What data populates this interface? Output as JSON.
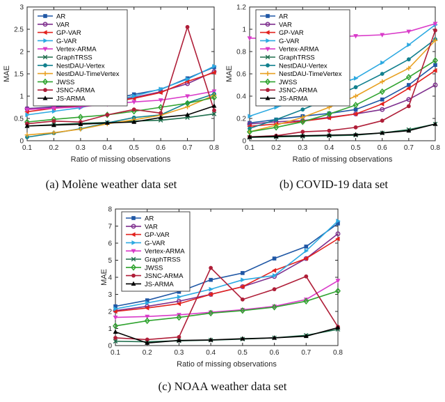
{
  "figure": {
    "captions": {
      "a": "(a) Molène weather data set",
      "b": "(b) COVID-19 data set",
      "c": "(c) NOAA weather data set"
    }
  },
  "colors": {
    "axis": "#262626",
    "legend_border": "#333333",
    "ar_blue": "#1F57A5",
    "var_purple": "#7E2F8E",
    "gpvar_red": "#E2201C",
    "gvar_lightblue": "#2CA9E1",
    "vertexarma_magenta": "#D93BC9",
    "graphtrss_darkgreen": "#1E6E4C",
    "nestdau_vertex_teal": "#12808E",
    "nestdau_timevertex_orange": "#E8A020",
    "jwss_green": "#2FA32F",
    "jsncarma_crimson": "#AF1E38",
    "jsarma_black": "#000000"
  },
  "chart_data": [
    {
      "id": "molene",
      "type": "line",
      "title": "",
      "xlabel": "Ratio of missing observations",
      "ylabel": "MAE",
      "legend_position": "northwest",
      "grid": false,
      "x": [
        0.1,
        0.2,
        0.3,
        0.4,
        0.5,
        0.6,
        0.7,
        0.8
      ],
      "xtick_labels": [
        "0.1",
        "0.2",
        "0.3",
        "0.4",
        "0.5",
        "0.6",
        "0.7",
        "0.8"
      ],
      "xlim": [
        0.1,
        0.8
      ],
      "ylim": [
        0,
        3
      ],
      "yticks": [
        0,
        0.5,
        1,
        1.5,
        2,
        2.5,
        3
      ],
      "ytick_labels": [
        "0",
        "0.5",
        "1",
        "1.5",
        "2",
        "2.5",
        "3"
      ],
      "series": [
        {
          "name": "AR",
          "color": "#1F57A5",
          "marker": "square",
          "values": [
            0.72,
            0.76,
            0.82,
            0.91,
            1.04,
            1.15,
            1.4,
            1.65
          ]
        },
        {
          "name": "VAR",
          "color": "#7E2F8E",
          "marker": "circle",
          "values": [
            0.72,
            0.75,
            0.78,
            0.86,
            0.97,
            1.1,
            1.28,
            1.55
          ]
        },
        {
          "name": "GP-VAR",
          "color": "#E2201C",
          "marker": "tri-left",
          "values": [
            0.65,
            0.73,
            0.78,
            0.85,
            0.95,
            1.08,
            1.33,
            1.53
          ]
        },
        {
          "name": "G-VAR",
          "color": "#2CA9E1",
          "marker": "tri-right",
          "values": [
            0.58,
            0.66,
            0.74,
            0.88,
            1.0,
            1.16,
            1.38,
            1.67
          ]
        },
        {
          "name": "Vertex-ARMA",
          "color": "#D93BC9",
          "marker": "tri-down",
          "values": [
            0.7,
            0.73,
            0.76,
            0.82,
            0.87,
            0.91,
            1.0,
            1.11
          ]
        },
        {
          "name": "GraphTRSS",
          "color": "#1E6E4C",
          "marker": "x",
          "values": [
            0.33,
            0.36,
            0.39,
            0.41,
            0.44,
            0.46,
            0.52,
            0.6
          ]
        },
        {
          "name": "NestDAU-Vertex",
          "color": "#12808E",
          "marker": "dot",
          "values": [
            0.08,
            0.17,
            0.27,
            0.4,
            0.52,
            0.58,
            0.85,
            1.05
          ]
        },
        {
          "name": "NestDAU-TimeVertex",
          "color": "#E8A020",
          "marker": "plus",
          "values": [
            0.13,
            0.18,
            0.26,
            0.38,
            0.47,
            0.57,
            0.76,
            1.02
          ]
        },
        {
          "name": "JWSS",
          "color": "#2FA32F",
          "marker": "diamond",
          "values": [
            0.42,
            0.48,
            0.53,
            0.58,
            0.66,
            0.75,
            0.84,
            0.97
          ]
        },
        {
          "name": "JSNC-ARMA",
          "color": "#AF1E38",
          "marker": "dot",
          "values": [
            0.38,
            0.44,
            0.42,
            0.58,
            0.7,
            0.62,
            2.55,
            0.68
          ]
        },
        {
          "name": "JS-ARMA",
          "color": "#000000",
          "marker": "tri-up",
          "values": [
            0.33,
            0.35,
            0.37,
            0.4,
            0.42,
            0.52,
            0.58,
            0.78
          ]
        }
      ]
    },
    {
      "id": "covid",
      "type": "line",
      "title": "",
      "xlabel": "Ratio of missing observations",
      "ylabel": "MAE",
      "legend_position": "northwest",
      "grid": false,
      "x": [
        0.1,
        0.2,
        0.3,
        0.4,
        0.5,
        0.6,
        0.7,
        0.8
      ],
      "xtick_labels": [
        "0.1",
        "0.2",
        "0.3",
        "0.4",
        "0.5",
        "0.6",
        "0.7",
        "0.8"
      ],
      "xlim": [
        0.1,
        0.8
      ],
      "ylim": [
        0,
        1.2
      ],
      "yticks": [
        0,
        0.2,
        0.4,
        0.6,
        0.8,
        1,
        1.2
      ],
      "ytick_labels": [
        "0",
        "0.2",
        "0.4",
        "0.6",
        "0.8",
        "1",
        "1.2"
      ],
      "series": [
        {
          "name": "AR",
          "color": "#1F57A5",
          "marker": "square",
          "values": [
            0.16,
            0.19,
            0.22,
            0.245,
            0.28,
            0.37,
            0.5,
            0.68
          ]
        },
        {
          "name": "VAR",
          "color": "#7E2F8E",
          "marker": "circle",
          "values": [
            0.15,
            0.17,
            0.18,
            0.21,
            0.24,
            0.28,
            0.37,
            0.5
          ]
        },
        {
          "name": "GP-VAR",
          "color": "#E2201C",
          "marker": "tri-left",
          "values": [
            0.13,
            0.15,
            0.175,
            0.205,
            0.24,
            0.33,
            0.47,
            0.63
          ]
        },
        {
          "name": "G-VAR",
          "color": "#2CA9E1",
          "marker": "tri-right",
          "values": [
            0.22,
            0.3,
            0.37,
            0.48,
            0.56,
            0.7,
            0.86,
            1.04
          ]
        },
        {
          "name": "Vertex-ARMA",
          "color": "#D93BC9",
          "marker": "tri-down",
          "values": [
            0.92,
            0.92,
            0.925,
            0.93,
            0.94,
            0.95,
            0.98,
            1.05
          ]
        },
        {
          "name": "GraphTRSS",
          "color": "#1E6E4C",
          "marker": "x",
          "values": [
            0.03,
            0.035,
            0.04,
            0.045,
            0.05,
            0.07,
            0.1,
            0.15
          ]
        },
        {
          "name": "NestDAU-Vertex",
          "color": "#12808E",
          "marker": "dot",
          "values": [
            0.11,
            0.19,
            0.28,
            0.38,
            0.48,
            0.6,
            0.73,
            0.91
          ]
        },
        {
          "name": "NestDAU-TimeVertex",
          "color": "#E8A020",
          "marker": "plus",
          "values": [
            0.08,
            0.14,
            0.21,
            0.3,
            0.4,
            0.53,
            0.65,
            0.9
          ]
        },
        {
          "name": "JWSS",
          "color": "#2FA32F",
          "marker": "diamond",
          "values": [
            0.08,
            0.12,
            0.17,
            0.24,
            0.32,
            0.44,
            0.57,
            0.72
          ]
        },
        {
          "name": "JSNC-ARMA",
          "color": "#AF1E38",
          "marker": "dot",
          "values": [
            0.035,
            0.045,
            0.08,
            0.09,
            0.12,
            0.18,
            0.31,
            0.99
          ]
        },
        {
          "name": "JS-ARMA",
          "color": "#000000",
          "marker": "tri-up",
          "values": [
            0.033,
            0.04,
            0.045,
            0.05,
            0.055,
            0.07,
            0.09,
            0.15
          ]
        }
      ]
    },
    {
      "id": "noaa",
      "type": "line",
      "title": "",
      "xlabel": "Ratio of missing observations",
      "ylabel": "MAE",
      "legend_position": "northwest",
      "grid": false,
      "x": [
        0.1,
        0.2,
        0.3,
        0.4,
        0.5,
        0.6,
        0.7,
        0.8
      ],
      "xtick_labels": [
        "0.1",
        "0.2",
        "0.3",
        "0.4",
        "0.5",
        "0.6",
        "0.7",
        "0.8"
      ],
      "xlim": [
        0.1,
        0.8
      ],
      "ylim": [
        0,
        8
      ],
      "yticks": [
        0,
        1,
        2,
        3,
        4,
        5,
        6,
        7,
        8
      ],
      "ytick_labels": [
        "0",
        "1",
        "2",
        "3",
        "4",
        "5",
        "6",
        "7",
        "8"
      ],
      "series": [
        {
          "name": "AR",
          "color": "#1F57A5",
          "marker": "square",
          "values": [
            2.3,
            2.65,
            3.15,
            3.85,
            4.25,
            5.1,
            5.8,
            7.15
          ]
        },
        {
          "name": "VAR",
          "color": "#7E2F8E",
          "marker": "circle",
          "values": [
            2.05,
            2.3,
            2.6,
            3.0,
            3.45,
            4.05,
            5.1,
            6.55
          ]
        },
        {
          "name": "GP-VAR",
          "color": "#E2201C",
          "marker": "tri-left",
          "values": [
            2.0,
            2.2,
            2.45,
            3.0,
            3.45,
            4.4,
            5.1,
            6.25
          ]
        },
        {
          "name": "G-VAR",
          "color": "#2CA9E1",
          "marker": "tri-right",
          "values": [
            2.15,
            2.5,
            2.85,
            3.3,
            3.85,
            4.1,
            5.55,
            7.3
          ]
        },
        {
          "name": "Vertex-ARMA",
          "color": "#D93BC9",
          "marker": "tri-down",
          "values": [
            1.65,
            1.7,
            1.8,
            1.95,
            2.1,
            2.3,
            2.7,
            3.8
          ]
        },
        {
          "name": "GraphTRSS",
          "color": "#1E6E4C",
          "marker": "x",
          "values": [
            0.25,
            0.22,
            0.28,
            0.32,
            0.38,
            0.45,
            0.6,
            0.95
          ]
        },
        {
          "name": "JWSS",
          "color": "#2FA32F",
          "marker": "diamond",
          "values": [
            1.15,
            1.45,
            1.65,
            1.9,
            2.05,
            2.25,
            2.6,
            3.2
          ]
        },
        {
          "name": "JSNC-ARMA",
          "color": "#AF1E38",
          "marker": "dot",
          "values": [
            0.45,
            0.35,
            0.5,
            4.55,
            2.7,
            3.3,
            4.05,
            1.1
          ]
        },
        {
          "name": "JS-ARMA",
          "color": "#000000",
          "marker": "tri-up",
          "values": [
            0.8,
            0.15,
            0.3,
            0.33,
            0.4,
            0.45,
            0.55,
            1.05
          ]
        }
      ]
    }
  ]
}
